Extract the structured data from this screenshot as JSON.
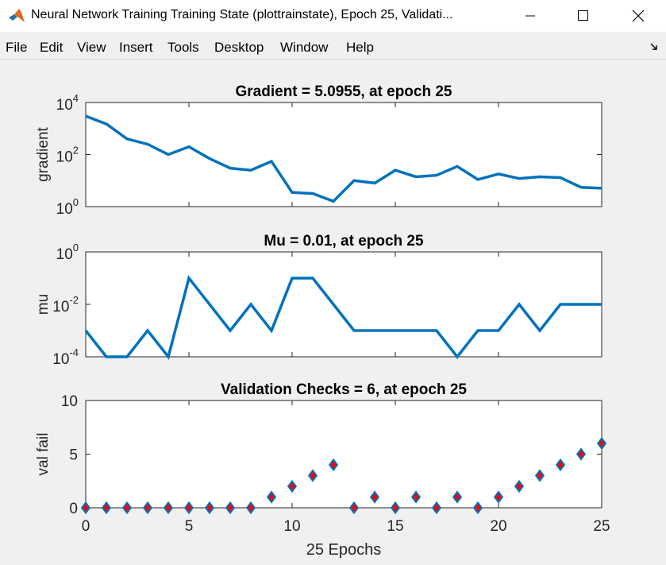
{
  "window": {
    "title": "Neural Network Training Training State (plottrainstate), Epoch 25, Validati...",
    "menu": [
      "File",
      "Edit",
      "View",
      "Insert",
      "Tools",
      "Desktop",
      "Window",
      "Help"
    ]
  },
  "colors": {
    "line": "#0072bd",
    "marker_fill": "#ff0000",
    "marker_edge": "#0072bd",
    "axes_bg": "#ffffff"
  },
  "chart_data": [
    {
      "type": "line",
      "title": "Gradient = 5.0955, at epoch 25",
      "ylabel": "gradient",
      "yscale": "log",
      "ylim": [
        1,
        10000
      ],
      "yticks": [
        {
          "b": "10",
          "e": "0"
        },
        {
          "b": "10",
          "e": "2"
        },
        {
          "b": "10",
          "e": "4"
        }
      ],
      "x": [
        0,
        1,
        2,
        3,
        4,
        5,
        6,
        7,
        8,
        9,
        10,
        11,
        12,
        13,
        14,
        15,
        16,
        17,
        18,
        19,
        20,
        21,
        22,
        23,
        24,
        25
      ],
      "values": [
        3000,
        1500,
        400,
        250,
        100,
        200,
        70,
        30,
        25,
        55,
        3.5,
        3.2,
        1.6,
        10,
        8,
        25,
        14,
        16,
        35,
        11,
        18,
        12,
        14,
        13,
        5.5,
        5.0955
      ],
      "xlim": [
        0,
        25
      ],
      "grid": false
    },
    {
      "type": "line",
      "title": "Mu = 0.01, at epoch 25",
      "ylabel": "mu",
      "yscale": "log",
      "ylim": [
        0.0001,
        1
      ],
      "yticks": [
        {
          "b": "10",
          "e": "-4"
        },
        {
          "b": "10",
          "e": "-2"
        },
        {
          "b": "10",
          "e": "0"
        }
      ],
      "x": [
        0,
        1,
        2,
        3,
        4,
        5,
        6,
        7,
        8,
        9,
        10,
        11,
        12,
        13,
        14,
        15,
        16,
        17,
        18,
        19,
        20,
        21,
        22,
        23,
        24,
        25
      ],
      "values": [
        0.001,
        0.0001,
        0.0001,
        0.001,
        0.0001,
        0.1,
        0.01,
        0.001,
        0.01,
        0.001,
        0.1,
        0.1,
        0.01,
        0.001,
        0.001,
        0.001,
        0.001,
        0.001,
        0.0001,
        0.001,
        0.001,
        0.01,
        0.001,
        0.01,
        0.01,
        0.01
      ],
      "xlim": [
        0,
        25
      ],
      "grid": false
    },
    {
      "type": "line",
      "title": "Validation Checks = 6, at epoch 25",
      "ylabel": "val fail",
      "xlabel": "25 Epochs",
      "yscale": "linear",
      "ylim": [
        0,
        10
      ],
      "yticks": [
        "0",
        "5",
        "10"
      ],
      "xticks": [
        "0",
        "5",
        "10",
        "15",
        "20",
        "25"
      ],
      "x": [
        0,
        1,
        2,
        3,
        4,
        5,
        6,
        7,
        8,
        9,
        10,
        11,
        12,
        13,
        14,
        15,
        16,
        17,
        18,
        19,
        20,
        21,
        22,
        23,
        24,
        25
      ],
      "values": [
        0,
        0,
        0,
        0,
        0,
        0,
        0,
        0,
        0,
        1,
        2,
        3,
        4,
        0,
        1,
        0,
        1,
        0,
        1,
        0,
        1,
        2,
        3,
        4,
        5,
        6
      ],
      "xlim": [
        0,
        25
      ],
      "markers": "diamond",
      "grid": false
    }
  ]
}
